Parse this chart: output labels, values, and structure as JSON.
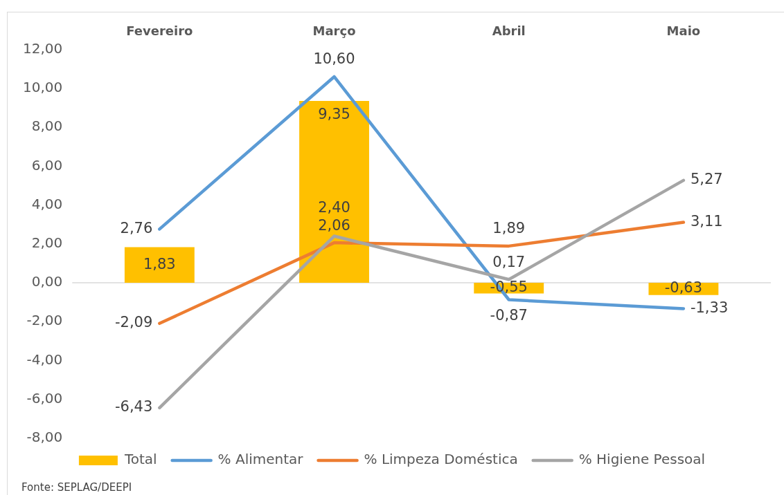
{
  "chart_data": {
    "type": "bar",
    "categories": [
      "Fevereiro",
      "Março",
      "Abril",
      "Maio"
    ],
    "series": [
      {
        "name": "Total",
        "color": "#ffc000",
        "values": [
          1.83,
          9.35,
          -0.55,
          -0.63
        ],
        "value_labels": [
          "1,83",
          "9,35",
          "-0,55",
          "-0,63"
        ]
      },
      {
        "name": "% Alimentar",
        "type": "line",
        "color": "#5b9bd5",
        "values": [
          2.76,
          10.6,
          -0.87,
          -1.33
        ],
        "value_labels": [
          "2,76",
          "10,60",
          "-0,87",
          "-1,33"
        ]
      },
      {
        "name": "% Limpeza Doméstica",
        "type": "line",
        "color": "#ed7d31",
        "values": [
          -2.09,
          2.06,
          1.89,
          3.11
        ],
        "value_labels": [
          "-2,09",
          "2,06",
          "1,89",
          "3,11"
        ]
      },
      {
        "name": "% Higiene Pessoal",
        "type": "line",
        "color": "#a5a5a5",
        "values": [
          -6.43,
          2.4,
          0.17,
          5.27
        ],
        "value_labels": [
          "-6,43",
          "2,40",
          "0,17",
          "5,27"
        ]
      }
    ],
    "ylim": [
      -8,
      12
    ],
    "yticks": [
      {
        "value": -8,
        "label": "-8,00"
      },
      {
        "value": -6,
        "label": "-6,00"
      },
      {
        "value": -4,
        "label": "-4,00"
      },
      {
        "value": -2,
        "label": "-2,00"
      },
      {
        "value": 0,
        "label": "0,00"
      },
      {
        "value": 2,
        "label": "2,00"
      },
      {
        "value": 4,
        "label": "4,00"
      },
      {
        "value": 6,
        "label": "6,00"
      },
      {
        "value": 8,
        "label": "8,00"
      },
      {
        "value": 10,
        "label": "10,00"
      },
      {
        "value": 12,
        "label": "12,00"
      }
    ],
    "ref_lines": [
      {
        "axis": "y",
        "value": 0,
        "color": "#d9d9d9"
      }
    ],
    "grid": false,
    "legend": "bottom",
    "marker": "none",
    "line_style": "solid",
    "annotations": [
      "Fonte: SEPLAG/DEEPI"
    ]
  }
}
